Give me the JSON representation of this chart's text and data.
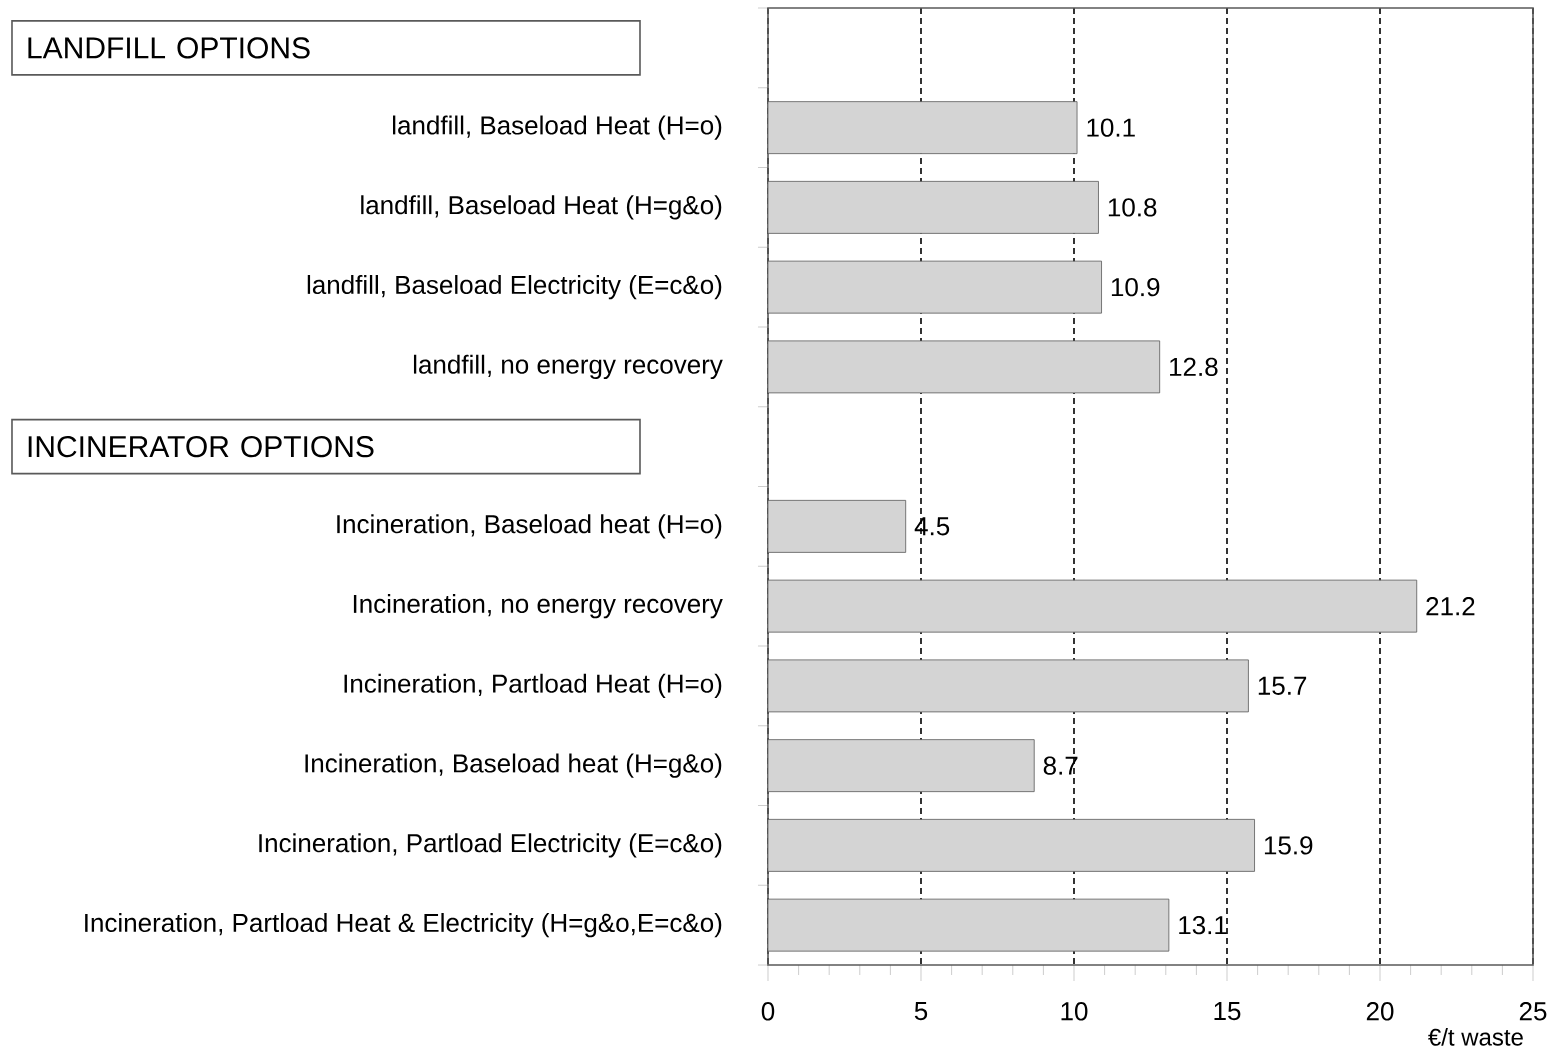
{
  "chart_data": {
    "type": "bar",
    "orientation": "horizontal",
    "categories": [
      null,
      "landfill, Baseload Heat (H=o)",
      "landfill, Baseload Heat (H=g&o)",
      "landfill, Baseload Electricity (E=c&o)",
      "landfill, no energy recovery",
      null,
      "Incineration, Baseload heat (H=o)",
      "Incineration, no energy recovery",
      "Incineration, Partload Heat (H=o)",
      "Incineration, Baseload heat (H=g&o)",
      "Incineration, Partload Electricity (E=c&o)",
      "Incineration, Partload Heat & Electricity (H=g&o,E=c&o)"
    ],
    "values": [
      null,
      10.1,
      10.8,
      10.9,
      12.8,
      null,
      4.5,
      21.2,
      15.7,
      8.7,
      15.9,
      13.1
    ],
    "color": "#d4d4d4",
    "xlim": [
      0,
      25
    ],
    "xticks": [
      0,
      5,
      10,
      15,
      20,
      25
    ],
    "xlabel": "€/t waste",
    "grid": "x",
    "data_labels": true,
    "annotations": [
      "LANDFILL OPTIONS",
      "INCINERATOR OPTIONS"
    ]
  }
}
